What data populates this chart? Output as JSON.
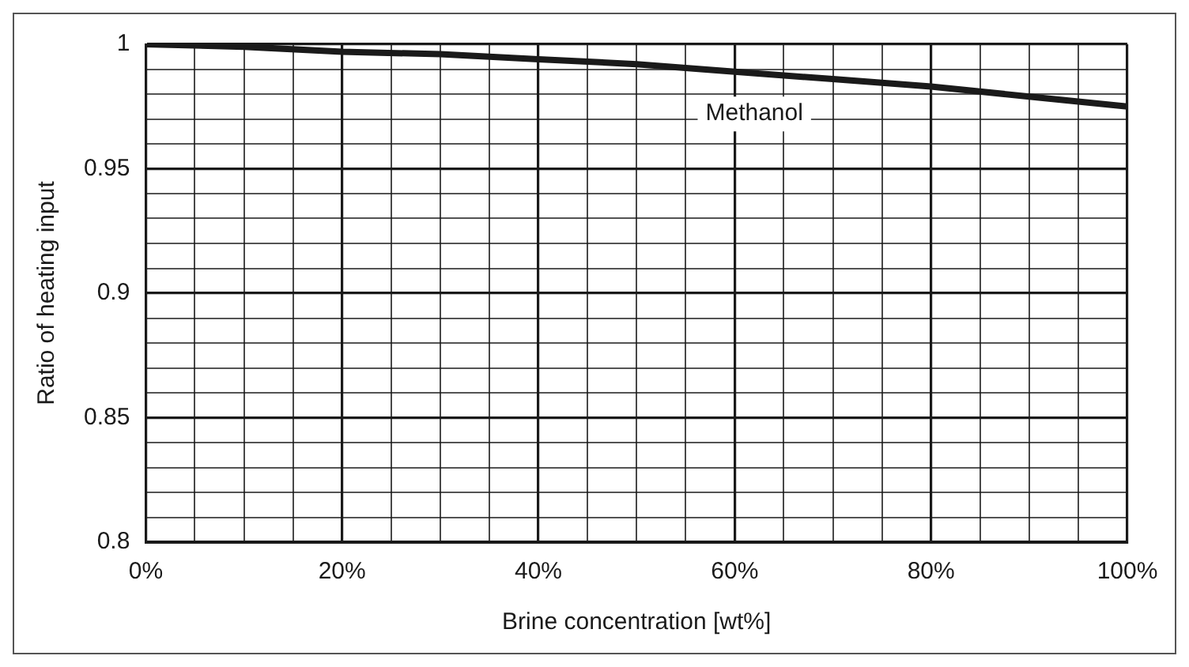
{
  "chart_data": {
    "type": "line",
    "xlabel": "Brine concentration [wt%]",
    "ylabel": "Ratio of heating input",
    "series": [
      {
        "color": "#1a1a1a",
        "x": [
          0,
          10,
          20,
          30,
          40,
          50,
          60,
          70,
          80,
          90,
          100
        ],
        "values": [
          1.0,
          0.999,
          0.997,
          0.996,
          0.994,
          0.992,
          0.989,
          0.986,
          0.983,
          0.979,
          0.975
        ]
      }
    ],
    "annotations": [
      "Methanol"
    ],
    "xlim": [
      0,
      100
    ],
    "xticks": [
      {
        "value": 0,
        "label": "0%"
      },
      {
        "value": 5,
        "label": null
      },
      {
        "value": 10,
        "label": null
      },
      {
        "value": 15,
        "label": null
      },
      {
        "value": 20,
        "label": "20%"
      },
      {
        "value": 25,
        "label": null
      },
      {
        "value": 30,
        "label": null
      },
      {
        "value": 35,
        "label": null
      },
      {
        "value": 40,
        "label": "40%"
      },
      {
        "value": 45,
        "label": null
      },
      {
        "value": 50,
        "label": null
      },
      {
        "value": 55,
        "label": null
      },
      {
        "value": 60,
        "label": "60%"
      },
      {
        "value": 65,
        "label": null
      },
      {
        "value": 70,
        "label": null
      },
      {
        "value": 75,
        "label": null
      },
      {
        "value": 80,
        "label": "80%"
      },
      {
        "value": 85,
        "label": null
      },
      {
        "value": 90,
        "label": null
      },
      {
        "value": 95,
        "label": null
      },
      {
        "value": 100,
        "label": "100%"
      }
    ],
    "ylim": [
      0.8,
      1
    ],
    "yticks": [
      0.8,
      {
        "value": 0.81,
        "label": null
      },
      {
        "value": 0.82,
        "label": null
      },
      {
        "value": 0.83,
        "label": null
      },
      {
        "value": 0.84,
        "label": null
      },
      0.85,
      {
        "value": 0.86,
        "label": null
      },
      {
        "value": 0.87,
        "label": null
      },
      {
        "value": 0.88,
        "label": null
      },
      {
        "value": 0.89,
        "label": null
      },
      0.9,
      {
        "value": 0.91,
        "label": null
      },
      {
        "value": 0.92,
        "label": null
      },
      {
        "value": 0.93,
        "label": null
      },
      {
        "value": 0.94,
        "label": null
      },
      0.95,
      {
        "value": 0.96,
        "label": null
      },
      {
        "value": 0.97,
        "label": null
      },
      {
        "value": 0.98,
        "label": null
      },
      {
        "value": 0.99,
        "label": null
      },
      1
    ],
    "grid": true,
    "legend": false,
    "marker": "none",
    "line_style": "solid"
  }
}
